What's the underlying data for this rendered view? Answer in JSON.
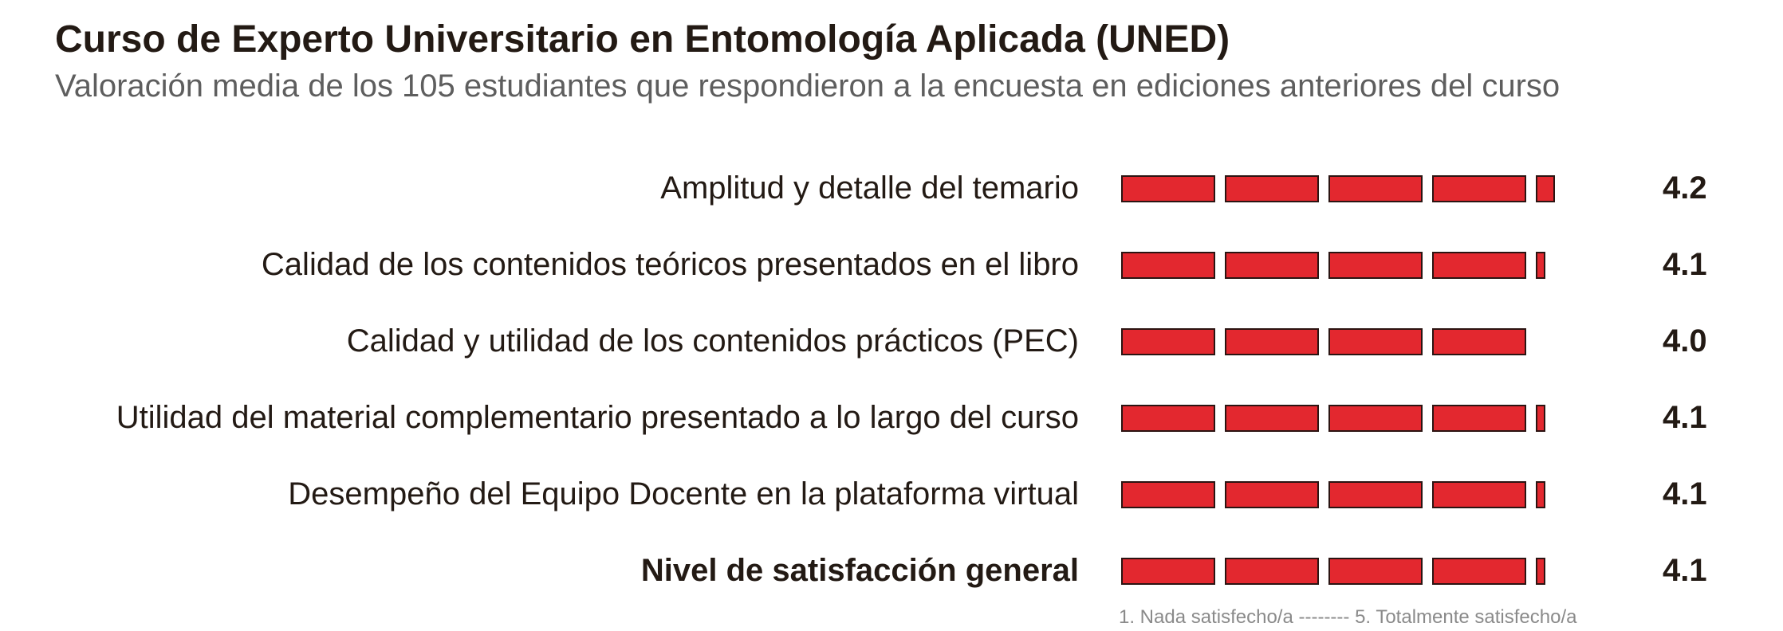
{
  "chart_data": {
    "type": "bar",
    "title": "Curso de Experto Universitario en Entomología Aplicada (UNED)",
    "subtitle": "Valoración media de los 105 estudiantes que respondieron a la encuesta en ediciones anteriores del curso",
    "categories": [
      "Amplitud y detalle del temario",
      "Calidad de los contenidos teóricos presentados en el libro",
      "Calidad y utilidad de los contenidos prácticos (PEC)",
      "Utilidad del material complementario presentado a lo largo del curso",
      "Desempeño del Equipo Docente en la plataforma virtual",
      "Nivel de satisfacción general"
    ],
    "values": [
      4.2,
      4.1,
      4.0,
      4.1,
      4.1,
      4.1
    ],
    "value_labels": [
      "4.2",
      "4.1",
      "4.0",
      "4.1",
      "4.1",
      "4.1"
    ],
    "bold_category_index": 5,
    "xlim": [
      0,
      5
    ],
    "scale_note": "1. Nada satisfecho/a   --------   5. Totalmente satisfecho/a",
    "bar_color": "#e3282f",
    "bar_outline_color": "#2b1412",
    "grid": false,
    "legend": "none"
  }
}
